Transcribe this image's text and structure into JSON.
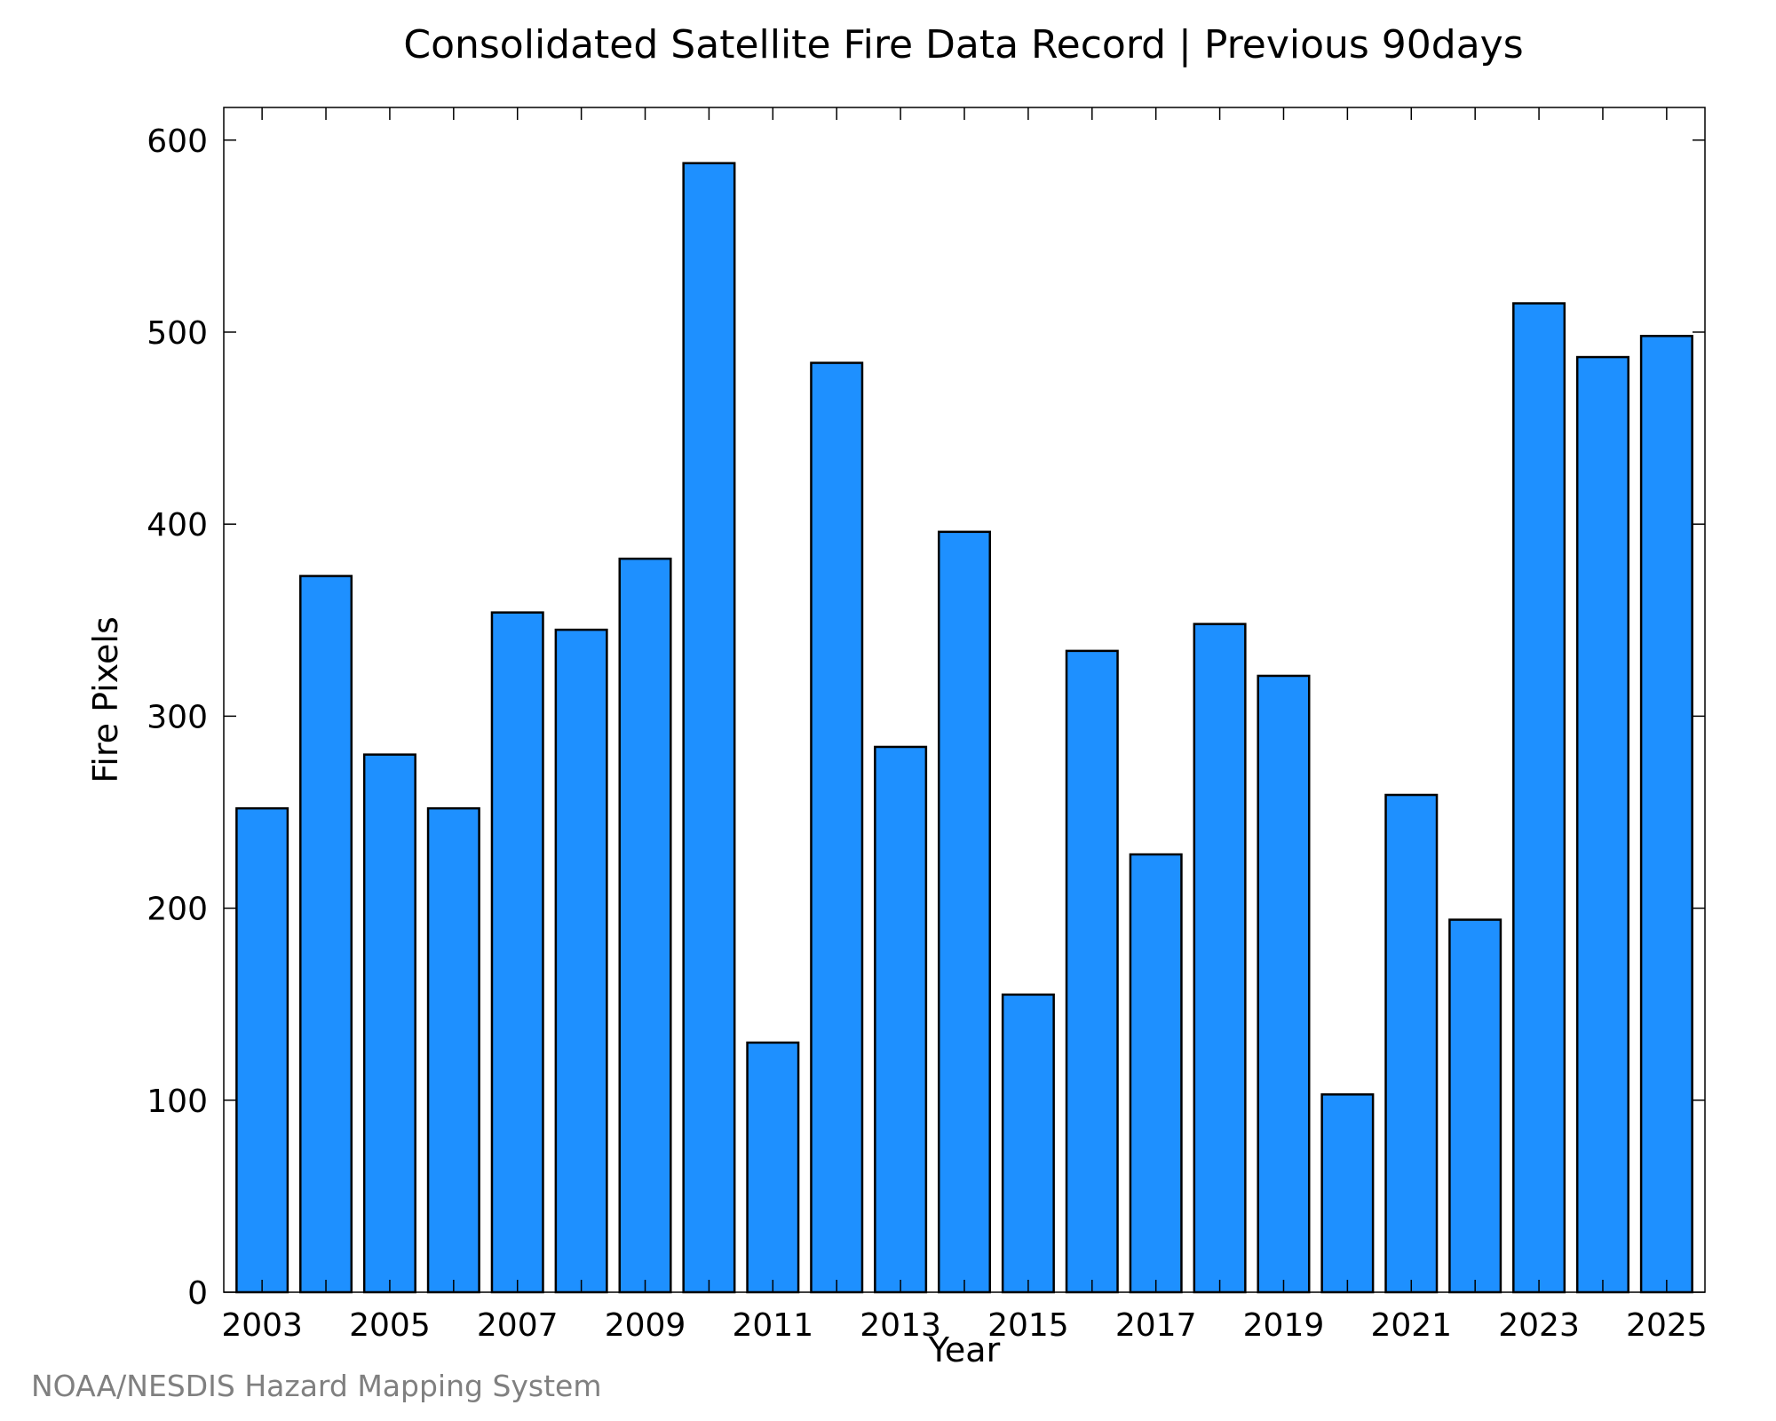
{
  "chart_data": {
    "type": "bar",
    "title": "Consolidated Satellite Fire Data Record | Previous 90days",
    "xlabel": "Year",
    "ylabel": "Fire Pixels",
    "categories": [
      "2003",
      "2004",
      "2005",
      "2006",
      "2007",
      "2008",
      "2009",
      "2010",
      "2011",
      "2012",
      "2013",
      "2014",
      "2015",
      "2016",
      "2017",
      "2018",
      "2019",
      "2020",
      "2021",
      "2022",
      "2023",
      "2024",
      "2025"
    ],
    "values": [
      252,
      373,
      280,
      252,
      354,
      345,
      382,
      588,
      130,
      484,
      284,
      396,
      155,
      334,
      228,
      348,
      321,
      103,
      259,
      194,
      515,
      487,
      498
    ],
    "x_tick_labels": [
      "2003",
      "2005",
      "2007",
      "2009",
      "2011",
      "2013",
      "2015",
      "2017",
      "2019",
      "2021",
      "2023",
      "2025"
    ],
    "y_ticks": [
      0,
      100,
      200,
      300,
      400,
      500,
      600
    ],
    "ylim": [
      0,
      617
    ],
    "grid": false,
    "bar_color": "#1e90ff",
    "edge_color": "#000000"
  },
  "credit": "NOAA/NESDIS Hazard Mapping System"
}
